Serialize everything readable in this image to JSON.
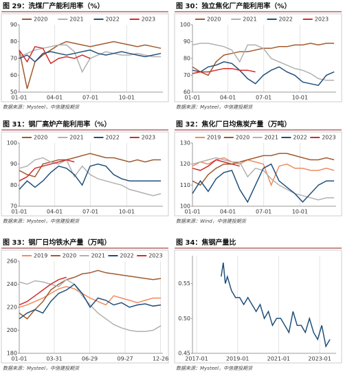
{
  "chart_data": [
    {
      "type": "line",
      "title": "图 29：洗煤厂产能利用率（%）",
      "source": "数据来源：Mysteel，中信建投期货",
      "x": [
        0,
        20,
        40,
        60,
        80,
        100,
        120,
        140,
        160,
        180,
        200,
        220,
        240,
        260,
        280,
        300,
        320,
        340,
        360
      ],
      "xlim": [
        0,
        365
      ],
      "xticks": [
        {
          "value": 0,
          "label": "01-01"
        },
        {
          "value": 90,
          "label": "04-01"
        },
        {
          "value": 181,
          "label": "07-01"
        },
        {
          "value": 273,
          "label": "10-01"
        }
      ],
      "ylim": [
        50,
        90
      ],
      "yticks": [
        50,
        60,
        70,
        80,
        90
      ],
      "grid": "x",
      "legend": "top",
      "series": [
        {
          "name": "2020",
          "color": "#a0592d",
          "values": [
            75,
            52,
            68,
            72,
            75,
            78,
            80,
            79,
            78,
            77,
            78,
            79,
            80,
            79,
            78,
            77,
            78,
            77,
            76
          ]
        },
        {
          "name": "2021",
          "color": "#b0b0b0",
          "values": [
            71,
            73,
            75,
            76,
            77,
            78,
            78,
            74,
            62,
            70,
            72,
            74,
            73,
            72,
            72,
            73,
            72,
            71,
            71
          ]
        },
        {
          "name": "2022",
          "color": "#1f4e79",
          "values": [
            70,
            72,
            68,
            73,
            74,
            73,
            72,
            73,
            74,
            75,
            73,
            72,
            73,
            74,
            73,
            72,
            71,
            72,
            73
          ]
        },
        {
          "name": "2023",
          "color": "#d42a2a",
          "values": [
            75,
            68,
            77,
            76,
            67,
            70,
            71,
            70,
            72,
            70,
            null,
            null,
            null,
            null,
            null,
            null,
            null,
            null,
            null
          ]
        }
      ]
    },
    {
      "type": "line",
      "title": "图 30：独立焦化厂产能利用率（%）",
      "source": "数据来源：Mysteel，中信建投期货",
      "x": [
        0,
        20,
        40,
        60,
        80,
        100,
        120,
        140,
        160,
        180,
        200,
        220,
        240,
        260,
        280,
        300,
        320,
        340,
        360
      ],
      "xlim": [
        0,
        365
      ],
      "xticks": [
        {
          "value": 0,
          "label": "01-01"
        },
        {
          "value": 90,
          "label": "04-01"
        },
        {
          "value": 181,
          "label": "07-01"
        },
        {
          "value": 273,
          "label": "10-01"
        }
      ],
      "ylim": [
        60,
        100
      ],
      "yticks": [
        60,
        70,
        80,
        90,
        100
      ],
      "grid": "x",
      "legend": "top",
      "series": [
        {
          "name": "2020",
          "color": "#a0592d",
          "values": [
            75,
            72,
            70,
            78,
            82,
            83,
            84,
            84,
            85,
            86,
            86,
            87,
            87,
            88,
            88,
            89,
            88,
            89,
            89
          ]
        },
        {
          "name": "2021",
          "color": "#b0b0b0",
          "values": [
            88,
            89,
            89,
            88,
            87,
            85,
            78,
            88,
            88,
            86,
            80,
            78,
            76,
            74,
            73,
            71,
            68,
            67,
            67
          ]
        },
        {
          "name": "2022",
          "color": "#1f4e79",
          "values": [
            73,
            72,
            75,
            76,
            78,
            77,
            73,
            68,
            65,
            70,
            73,
            75,
            72,
            70,
            66,
            65,
            64,
            70,
            72
          ]
        },
        {
          "name": "2023",
          "color": "#d42a2a",
          "values": [
            71,
            72,
            72,
            73,
            74,
            74,
            73,
            73,
            72,
            null,
            null,
            null,
            null,
            null,
            null,
            null,
            null,
            null,
            null
          ]
        }
      ]
    },
    {
      "type": "line",
      "title": "图 31：钢厂高炉产能利用率（%）",
      "source": "数据来源：Mysteel，中信建投期货",
      "x": [
        0,
        20,
        40,
        60,
        80,
        100,
        120,
        140,
        160,
        180,
        200,
        220,
        240,
        260,
        280,
        300,
        320,
        340,
        360
      ],
      "xlim": [
        0,
        365
      ],
      "xticks": [
        {
          "value": 0,
          "label": "01-01"
        },
        {
          "value": 90,
          "label": "04-01"
        },
        {
          "value": 181,
          "label": "07-01"
        },
        {
          "value": 273,
          "label": "10-01"
        }
      ],
      "ylim": [
        70,
        100
      ],
      "yticks": [
        70,
        80,
        90,
        100
      ],
      "grid": "x",
      "legend": "top",
      "series": [
        {
          "name": "2020",
          "color": "#a0592d",
          "values": [
            87,
            85,
            84,
            90,
            91,
            92,
            92,
            93,
            94,
            95,
            94,
            93,
            93,
            92,
            91,
            92,
            91,
            92,
            92
          ]
        },
        {
          "name": "2021",
          "color": "#b0b0b0",
          "values": [
            88,
            89,
            92,
            93,
            91,
            90,
            92,
            84,
            89,
            85,
            83,
            82,
            81,
            80,
            78,
            77,
            76,
            75,
            76
          ]
        },
        {
          "name": "2022",
          "color": "#1f4e79",
          "values": [
            78,
            82,
            79,
            82,
            86,
            89,
            88,
            85,
            80,
            89,
            90,
            89,
            85,
            83,
            82,
            82,
            82,
            82,
            82
          ]
        },
        {
          "name": "2023",
          "color": "#d42a2a",
          "values": [
            82,
            84,
            88,
            89,
            90,
            91,
            92,
            91,
            null,
            null,
            null,
            null,
            null,
            null,
            null,
            null,
            null,
            null,
            null
          ]
        }
      ]
    },
    {
      "type": "line",
      "title": "图 32：焦化厂日均焦炭产量（万吨）",
      "source": "数据来源：Wind，中信建投期货",
      "x": [
        0,
        20,
        40,
        60,
        80,
        100,
        120,
        140,
        160,
        180,
        200,
        220,
        240,
        260,
        280,
        300,
        320,
        340,
        360
      ],
      "xlim": [
        0,
        365
      ],
      "xticks": [
        {
          "value": 0,
          "label": "01-01"
        },
        {
          "value": 90,
          "label": "04-01"
        },
        {
          "value": 181,
          "label": "07-01"
        },
        {
          "value": 273,
          "label": "10-01"
        }
      ],
      "ylim": [
        100,
        130
      ],
      "yticks": [
        100,
        110,
        120,
        130
      ],
      "grid": "x",
      "legend": "top",
      "series": [
        {
          "name": "2019",
          "color": "#f08a5d",
          "values": [
            119,
            121,
            120,
            122,
            123,
            121,
            120,
            122,
            121,
            120,
            110,
            119,
            120,
            118,
            118,
            117,
            117,
            118,
            117
          ]
        },
        {
          "name": "2020",
          "color": "#a0592d",
          "values": [
            112,
            110,
            115,
            118,
            120,
            120,
            121,
            122,
            123,
            124,
            124,
            125,
            125,
            124,
            123,
            122,
            122,
            123,
            122
          ]
        },
        {
          "name": "2021",
          "color": "#b0b0b0",
          "values": [
            120,
            121,
            122,
            123,
            122,
            121,
            121,
            114,
            118,
            117,
            113,
            110,
            108,
            106,
            105,
            104,
            103,
            104,
            104
          ]
        },
        {
          "name": "2022",
          "color": "#1f4e79",
          "values": [
            106,
            112,
            107,
            113,
            116,
            117,
            108,
            102,
            110,
            118,
            120,
            112,
            109,
            106,
            102,
            106,
            110,
            112,
            112
          ]
        },
        {
          "name": "2023",
          "color": "#d42a2a",
          "values": [
            118,
            117,
            119,
            122,
            121,
            120,
            119,
            null,
            null,
            null,
            null,
            null,
            null,
            null,
            null,
            null,
            null,
            null,
            null
          ]
        }
      ]
    },
    {
      "type": "line",
      "title": "图 33：钢厂日均铁水产量（万吨）",
      "source": "数据来源：Mysteel，中信建投期货",
      "x": [
        0,
        20,
        40,
        60,
        80,
        100,
        120,
        140,
        160,
        180,
        200,
        220,
        240,
        260,
        280,
        300,
        320,
        340,
        360
      ],
      "xlim": [
        0,
        365
      ],
      "xticks": [
        {
          "value": 0,
          "label": "01-01"
        },
        {
          "value": 89,
          "label": "03-31"
        },
        {
          "value": 179,
          "label": "06-29"
        },
        {
          "value": 269,
          "label": "09-27"
        },
        {
          "value": 359,
          "label": "12-26"
        }
      ],
      "ylim": [
        180,
        260
      ],
      "yticks": [
        180,
        200,
        220,
        240,
        260
      ],
      "grid": "x",
      "legend": "top",
      "series": [
        {
          "name": "2019",
          "color": "#f08a5d",
          "values": [
            220,
            222,
            225,
            228,
            232,
            236,
            238,
            236,
            232,
            228,
            225,
            222,
            230,
            228,
            226,
            224,
            226,
            228,
            228
          ]
        },
        {
          "name": "2020",
          "color": "#a0592d",
          "values": [
            215,
            210,
            218,
            225,
            235,
            240,
            244,
            246,
            249,
            250,
            252,
            250,
            249,
            248,
            247,
            246,
            245,
            244,
            245
          ]
        },
        {
          "name": "2021",
          "color": "#b0b0b0",
          "values": [
            242,
            240,
            243,
            242,
            240,
            238,
            244,
            240,
            230,
            222,
            215,
            210,
            205,
            202,
            200,
            199,
            199,
            200,
            204
          ]
        },
        {
          "name": "2022",
          "color": "#1f4e79",
          "values": [
            210,
            215,
            218,
            215,
            225,
            232,
            235,
            240,
            232,
            220,
            228,
            226,
            222,
            224,
            220,
            222,
            223,
            221,
            222
          ]
        },
        {
          "name": "2023",
          "color": "#d42a2a",
          "values": [
            222,
            225,
            230,
            235,
            240,
            244,
            246,
            null,
            null,
            null,
            null,
            null,
            null,
            null,
            null,
            null,
            null,
            null,
            null
          ]
        }
      ]
    },
    {
      "type": "line",
      "title": "图 34：焦钢产量比",
      "source": "数据来源：Mysteel，中信建投期货",
      "x": [
        2018.2,
        2018.3,
        2018.4,
        2018.5,
        2018.7,
        2018.9,
        2019.1,
        2019.3,
        2019.5,
        2019.7,
        2019.9,
        2020.1,
        2020.3,
        2020.5,
        2020.7,
        2020.9,
        2021.1,
        2021.3,
        2021.5,
        2021.7,
        2021.9,
        2022.1,
        2022.3,
        2022.5,
        2022.7,
        2022.9,
        2023.1,
        2023.3,
        2023.5
      ],
      "xlim": [
        2016.8,
        2023.8
      ],
      "xticks": [
        {
          "value": 2017,
          "label": "2017-01"
        },
        {
          "value": 2019,
          "label": "2019-01"
        },
        {
          "value": 2021,
          "label": "2021-01"
        },
        {
          "value": 2023,
          "label": "2023-01"
        }
      ],
      "ylim": [
        0.45,
        0.59
      ],
      "yticks": [
        0.45,
        {
          "value": 0.5,
          "label": "0.50"
        },
        0.55
      ],
      "grid": "x",
      "series": [
        {
          "color": "#1f4e79",
          "values": [
            0.56,
            0.58,
            0.55,
            0.56,
            0.54,
            0.53,
            0.53,
            0.52,
            0.53,
            0.52,
            0.51,
            0.52,
            0.5,
            0.51,
            0.49,
            0.5,
            0.5,
            0.49,
            0.48,
            0.51,
            0.49,
            0.49,
            0.48,
            0.5,
            0.48,
            0.47,
            0.49,
            0.46,
            0.47
          ]
        }
      ]
    }
  ]
}
